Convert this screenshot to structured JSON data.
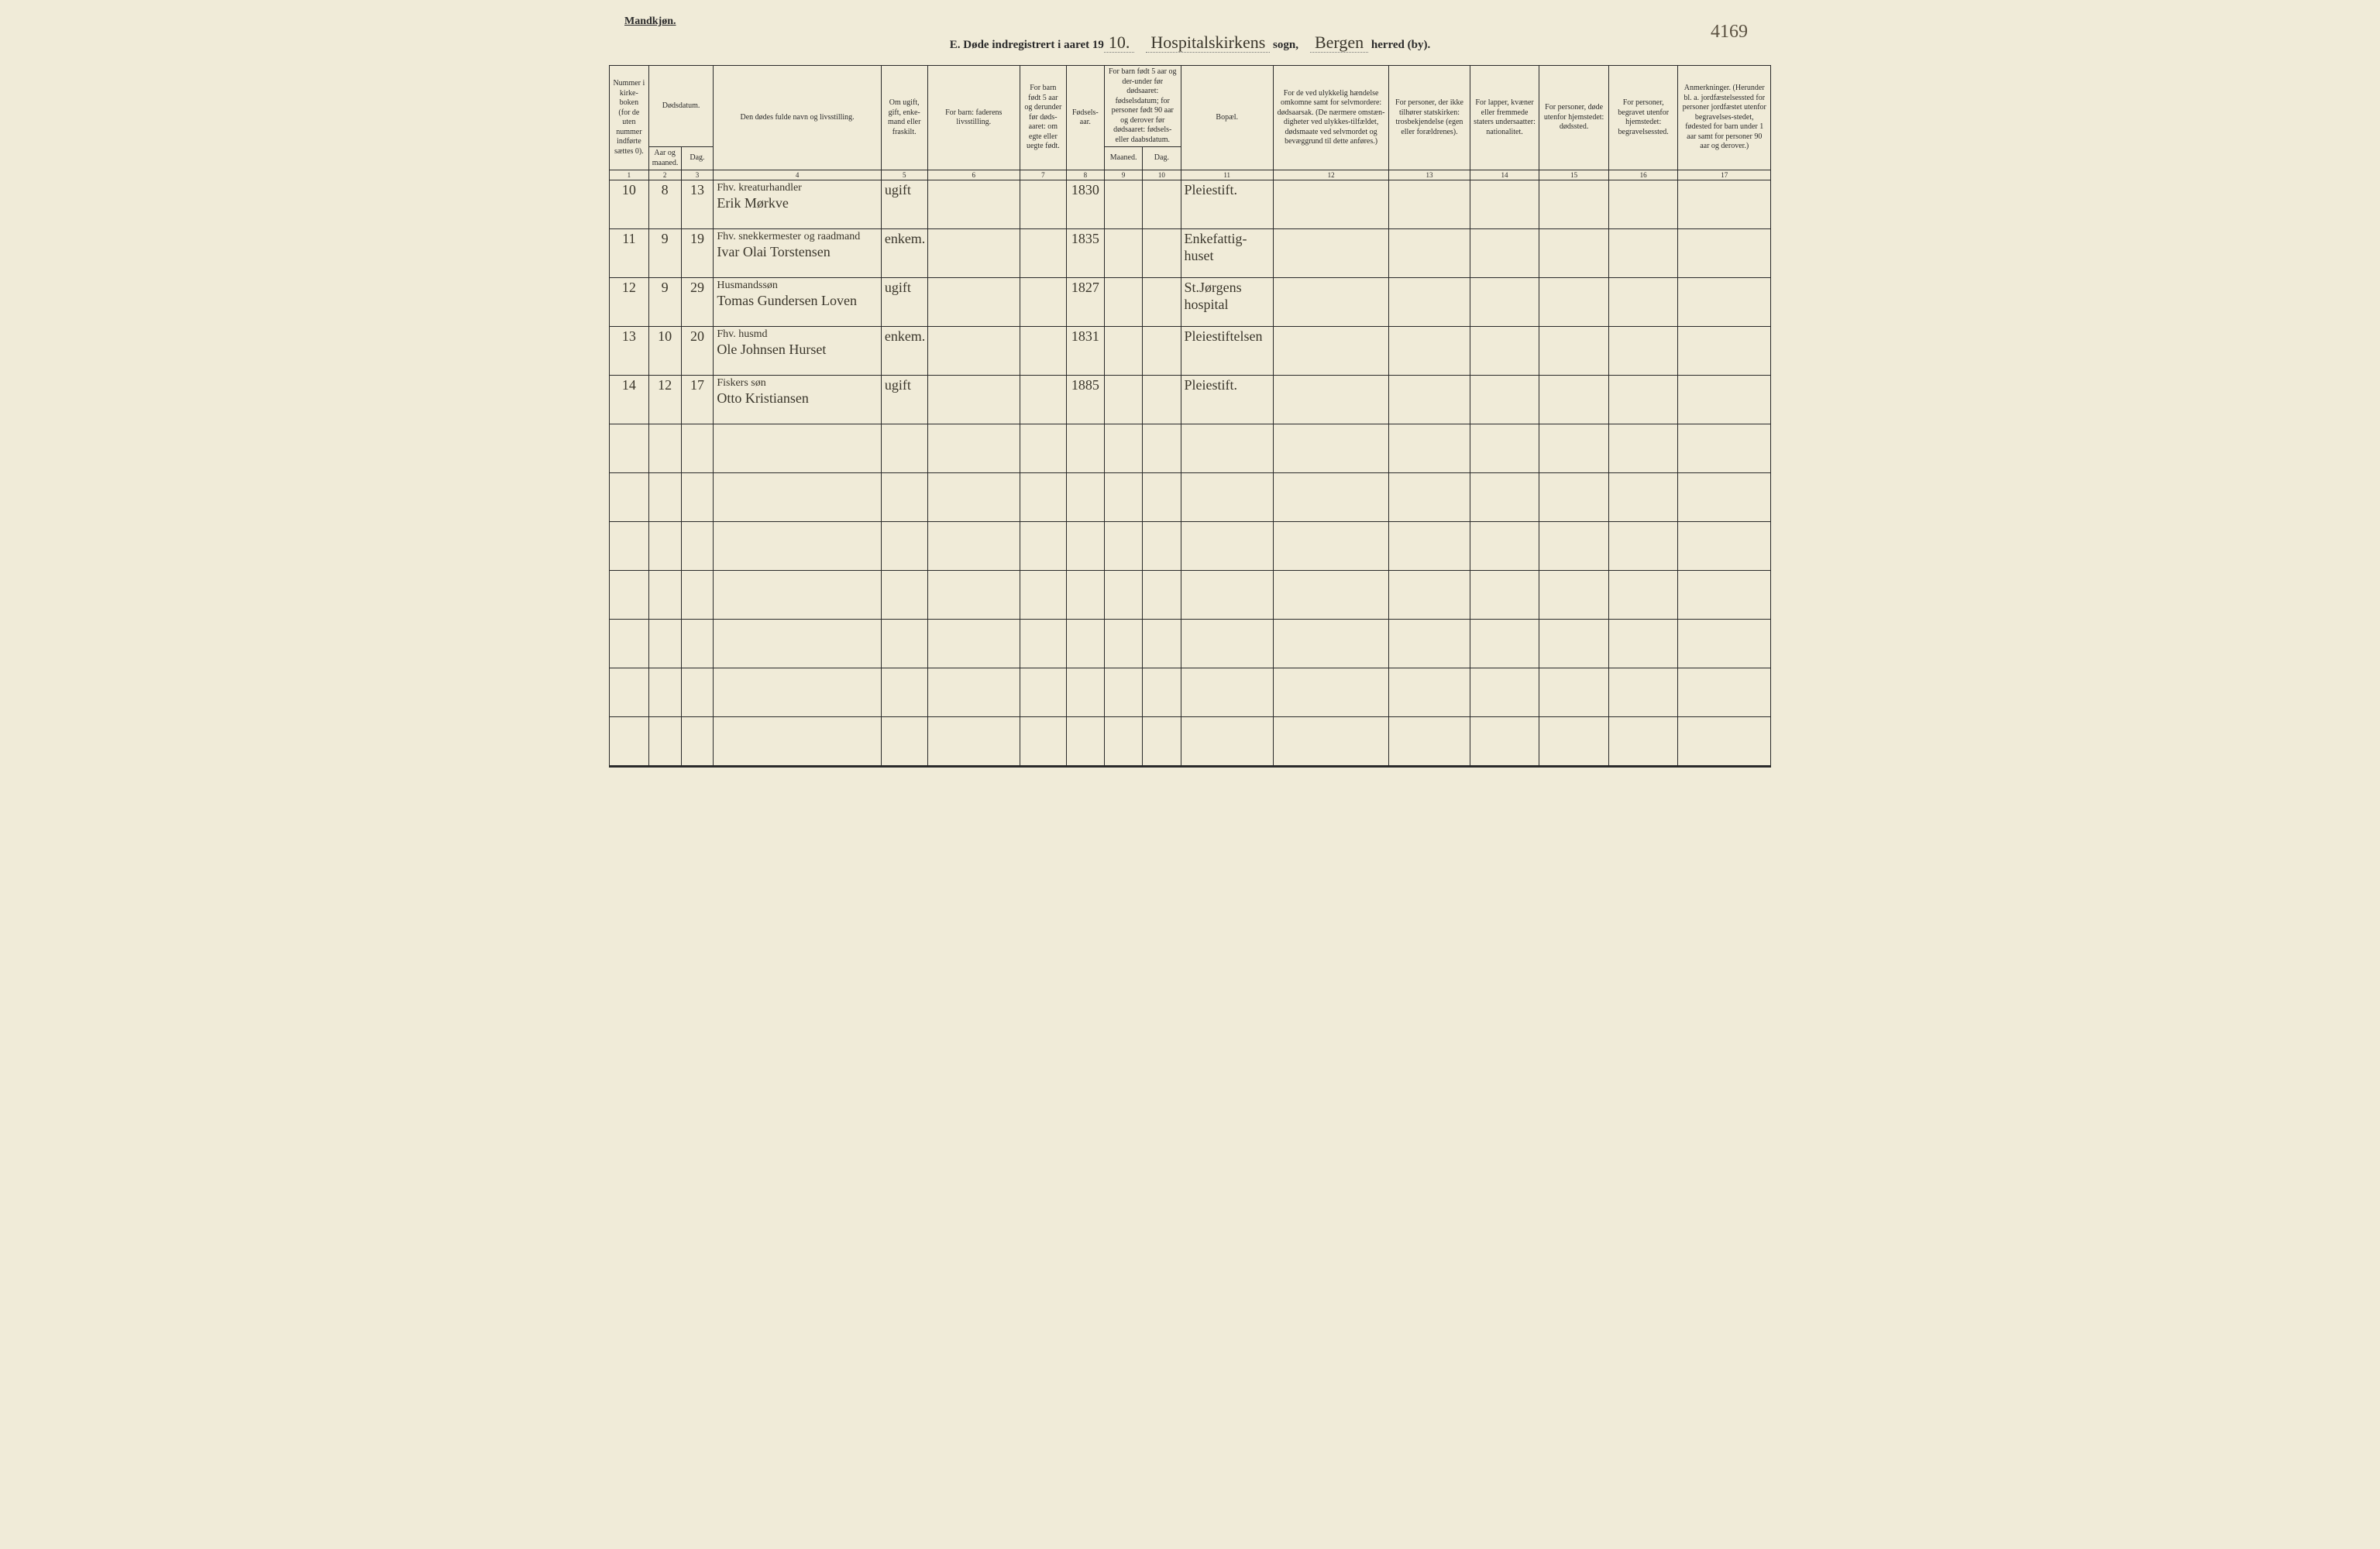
{
  "corner_note": "4169",
  "header_left": "Mandkjøn.",
  "title": {
    "prefix": "E.  Døde indregistrert i aaret 19",
    "year_written": "10.",
    "parish_written": "Hospitalskirkens",
    "parish_label": "sogn,",
    "district_written": "Bergen",
    "district_label": "herred (by)."
  },
  "columns": {
    "c1": "Nummer i kirke-boken (for de uten nummer indførte sættes 0).",
    "c2_group": "Dødsdatum.",
    "c2": "Aar og maaned.",
    "c3": "Dag.",
    "c4": "Den dødes fulde navn og livsstilling.",
    "c5": "Om ugift, gift, enke-mand eller fraskilt.",
    "c6": "For barn: faderens livsstilling.",
    "c7": "For barn født 5 aar og derunder før døds-aaret: om egte eller uegte født.",
    "c8": "Fødsels-aar.",
    "c9_group": "For barn født 5 aar og der-under før dødsaaret: fødselsdatum; for personer født 90 aar og derover før dødsaaret: fødsels- eller daabsdatum.",
    "c9": "Maaned.",
    "c10": "Dag.",
    "c11": "Bopæl.",
    "c12": "For de ved ulykkelig hændelse omkomne samt for selvmordere: dødsaarsak. (De nærmere omstæn-digheter ved ulykkes-tilfældet, dødsmaate ved selvmordet og bevæggrund til dette anføres.)",
    "c13": "For personer, der ikke tilhører statskirken: trosbekjendelse (egen eller forældrenes).",
    "c14": "For lapper, kvæner eller fremmede staters undersaatter: nationalitet.",
    "c15": "For personer, døde utenfor hjemstedet: dødssted.",
    "c16": "For personer, begravet utenfor hjemstedet: begravelsessted.",
    "c17": "Anmerkninger. (Herunder bl. a. jordfæstelsessted for personer jordfæstet utenfor begravelses-stedet, fødested for barn under 1 aar samt for personer 90 aar og derover.)"
  },
  "colnums": [
    "1",
    "2",
    "3",
    "4",
    "5",
    "6",
    "7",
    "8",
    "9",
    "10",
    "11",
    "12",
    "13",
    "14",
    "15",
    "16",
    "17"
  ],
  "rows": [
    {
      "no": "10",
      "month": "8",
      "day": "13",
      "name_occ": "Fhv. kreaturhandler",
      "name": "Erik Mørkve",
      "status": "ugift",
      "birth_year": "1830",
      "residence": "Pleiestift."
    },
    {
      "no": "11",
      "month": "9",
      "day": "19",
      "name_occ": "Fhv. snekkermester og raadmand",
      "name": "Ivar Olai Torstensen",
      "status": "enkem.",
      "birth_year": "1835",
      "residence": "Enkefattig-huset"
    },
    {
      "no": "12",
      "month": "9",
      "day": "29",
      "name_occ": "Husmandssøn",
      "name": "Tomas Gundersen Loven",
      "status": "ugift",
      "birth_year": "1827",
      "residence": "St.Jørgens hospital"
    },
    {
      "no": "13",
      "month": "10",
      "day": "20",
      "name_occ": "Fhv. husmd",
      "name": "Ole Johnsen Hurset",
      "status": "enkem.",
      "birth_year": "1831",
      "residence": "Pleiestiftelsen"
    },
    {
      "no": "14",
      "month": "12",
      "day": "17",
      "name_occ": "Fiskers søn",
      "name": "Otto Kristiansen",
      "status": "ugift",
      "birth_year": "1885",
      "residence": "Pleiestift."
    }
  ],
  "empty_row_count": 7
}
